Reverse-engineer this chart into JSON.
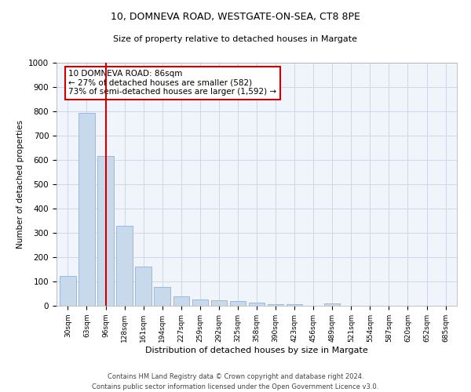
{
  "title_line1": "10, DOMNEVA ROAD, WESTGATE-ON-SEA, CT8 8PE",
  "title_line2": "Size of property relative to detached houses in Margate",
  "xlabel": "Distribution of detached houses by size in Margate",
  "ylabel": "Number of detached properties",
  "categories": [
    "30sqm",
    "63sqm",
    "96sqm",
    "128sqm",
    "161sqm",
    "194sqm",
    "227sqm",
    "259sqm",
    "292sqm",
    "325sqm",
    "358sqm",
    "390sqm",
    "423sqm",
    "456sqm",
    "489sqm",
    "521sqm",
    "554sqm",
    "587sqm",
    "620sqm",
    "652sqm",
    "685sqm"
  ],
  "values": [
    122,
    793,
    615,
    328,
    160,
    78,
    38,
    25,
    22,
    20,
    14,
    7,
    5,
    0,
    10,
    0,
    0,
    0,
    0,
    0,
    0
  ],
  "bar_color": "#c9d9ec",
  "bar_edge_color": "#a0b8d8",
  "red_line_x": 2,
  "annotation_text": "10 DOMNEVA ROAD: 86sqm\n← 27% of detached houses are smaller (582)\n73% of semi-detached houses are larger (1,592) →",
  "annotation_box_color": "#ffffff",
  "annotation_box_edge_color": "#cc0000",
  "ylim": [
    0,
    1000
  ],
  "yticks": [
    0,
    100,
    200,
    300,
    400,
    500,
    600,
    700,
    800,
    900,
    1000
  ],
  "footer_line1": "Contains HM Land Registry data © Crown copyright and database right 2024.",
  "footer_line2": "Contains public sector information licensed under the Open Government Licence v3.0.",
  "grid_color": "#d0d8e8",
  "background_color": "#f0f4fb"
}
